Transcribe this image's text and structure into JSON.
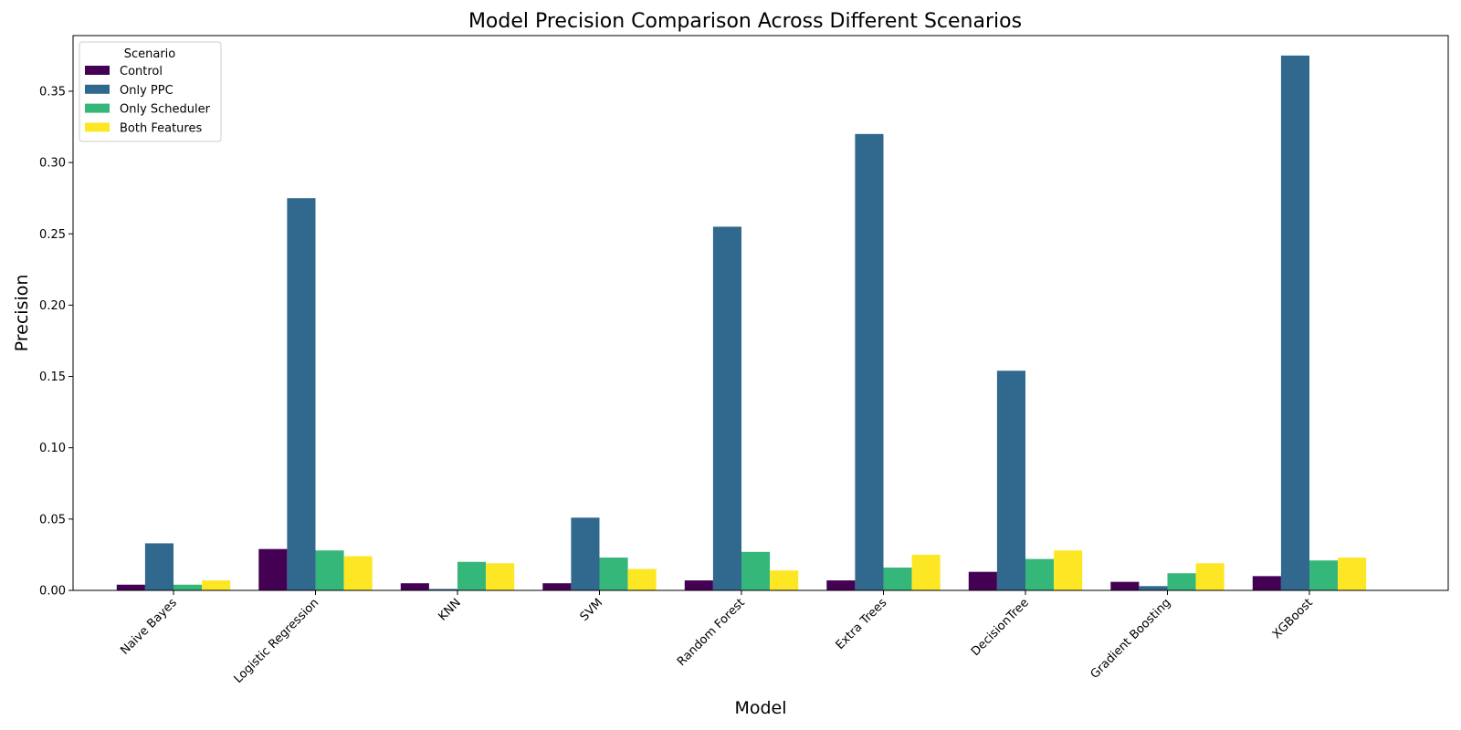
{
  "chart_data": {
    "type": "bar",
    "title": "Model Precision Comparison Across Different Scenarios",
    "xlabel": "Model",
    "ylabel": "Precision",
    "ylim": [
      0,
      0.389
    ],
    "yticks": [
      "0.00",
      "0.05",
      "0.10",
      "0.15",
      "0.20",
      "0.25",
      "0.30",
      "0.35"
    ],
    "grid": false,
    "legend": {
      "title": "Scenario",
      "position": "top-left"
    },
    "categories": [
      "Naive Bayes",
      "Logistic Regression",
      "KNN",
      "SVM",
      "Random Forest",
      "Extra Trees",
      "DecisionTree",
      "Gradient Boosting",
      "XGBoost"
    ],
    "series": [
      {
        "name": "Control",
        "color": "#440154",
        "values": [
          0.004,
          0.029,
          0.005,
          0.005,
          0.007,
          0.007,
          0.013,
          0.006,
          0.01
        ]
      },
      {
        "name": "Only PPC",
        "color": "#31688e",
        "values": [
          0.033,
          0.275,
          0.001,
          0.051,
          0.255,
          0.32,
          0.154,
          0.003,
          0.375
        ]
      },
      {
        "name": "Only Scheduler",
        "color": "#35b779",
        "values": [
          0.004,
          0.028,
          0.02,
          0.023,
          0.027,
          0.016,
          0.022,
          0.012,
          0.021
        ]
      },
      {
        "name": "Both Features",
        "color": "#fde725",
        "values": [
          0.007,
          0.024,
          0.019,
          0.015,
          0.014,
          0.025,
          0.028,
          0.019,
          0.023
        ]
      }
    ]
  }
}
